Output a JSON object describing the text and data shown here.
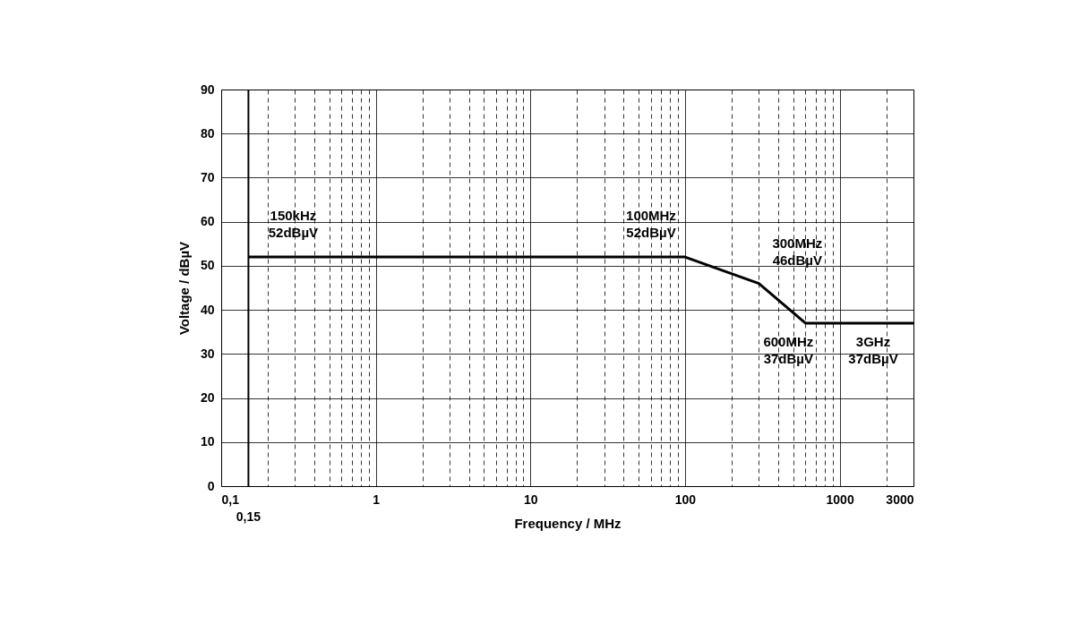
{
  "chart_data": {
    "type": "line",
    "xlabel": "Frequency / MHz",
    "ylabel": "Voltage / dBµV",
    "log": "x",
    "grid": true,
    "marker": "none",
    "line_style": "solid",
    "xlim": [
      0.1,
      3000
    ],
    "ylim": [
      0,
      90
    ],
    "xticks": [
      {
        "value": 0.1,
        "label": "0,1"
      },
      {
        "value": 0.2,
        "label": null
      },
      {
        "value": 0.3,
        "label": null
      },
      {
        "value": 0.4,
        "label": null
      },
      {
        "value": 0.5,
        "label": null
      },
      {
        "value": 0.6,
        "label": null
      },
      {
        "value": 0.7,
        "label": null
      },
      {
        "value": 0.8,
        "label": null
      },
      {
        "value": 0.9,
        "label": null
      },
      1,
      {
        "value": 2,
        "label": null
      },
      {
        "value": 3,
        "label": null
      },
      {
        "value": 4,
        "label": null
      },
      {
        "value": 5,
        "label": null
      },
      {
        "value": 6,
        "label": null
      },
      {
        "value": 7,
        "label": null
      },
      {
        "value": 8,
        "label": null
      },
      {
        "value": 9,
        "label": null
      },
      10,
      {
        "value": 20,
        "label": null
      },
      {
        "value": 30,
        "label": null
      },
      {
        "value": 40,
        "label": null
      },
      {
        "value": 50,
        "label": null
      },
      {
        "value": 60,
        "label": null
      },
      {
        "value": 70,
        "label": null
      },
      {
        "value": 80,
        "label": null
      },
      {
        "value": 90,
        "label": null
      },
      100,
      {
        "value": 200,
        "label": null
      },
      {
        "value": 300,
        "label": null
      },
      {
        "value": 400,
        "label": null
      },
      {
        "value": 500,
        "label": null
      },
      {
        "value": 600,
        "label": null
      },
      {
        "value": 700,
        "label": null
      },
      {
        "value": 800,
        "label": null
      },
      {
        "value": 900,
        "label": null
      },
      1000,
      {
        "value": 2000,
        "label": null
      },
      3000
    ],
    "yticks": [
      0,
      10,
      20,
      30,
      40,
      50,
      60,
      70,
      80,
      90
    ],
    "series": [
      {
        "color": "#000000",
        "x": [
          0.15,
          100,
          300,
          600,
          3000
        ],
        "values": [
          52,
          52,
          46,
          37,
          37
        ]
      }
    ],
    "ref_lines": [
      {
        "axis": "x",
        "value": 0.15,
        "label": "0,15",
        "color": "#000000"
      }
    ],
    "annotations": [
      {
        "text": "150kHz\n52dBµV",
        "x": 0.15,
        "y": 52
      },
      {
        "text": "100MHz\n52dBµV",
        "x": 100,
        "y": 52
      },
      {
        "text": "300MHz\n46dBµV",
        "x": 300,
        "y": 46
      },
      {
        "text": "600MHz\n37dBµV",
        "x": 600,
        "y": 37
      },
      {
        "text": "3GHz\n37dBµV",
        "x": 3000,
        "y": 37
      }
    ]
  }
}
